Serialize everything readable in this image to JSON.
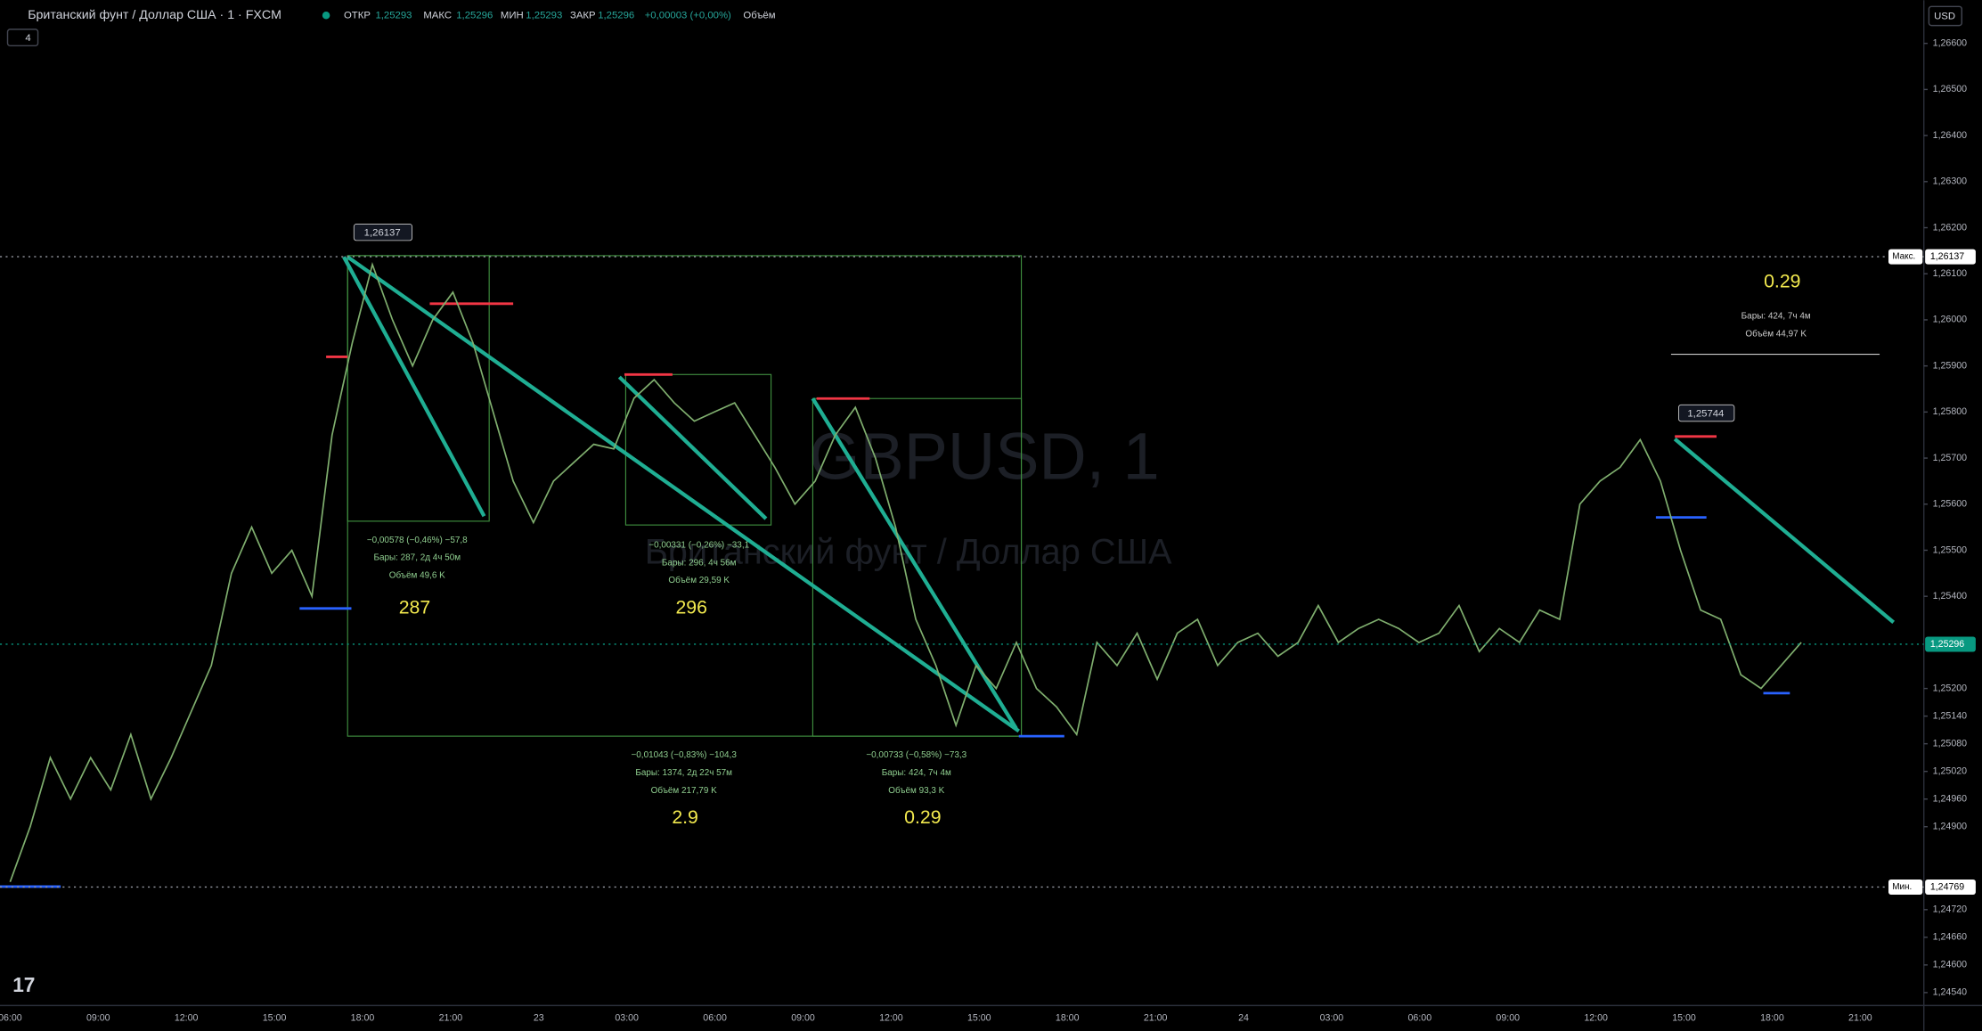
{
  "header": {
    "symbol": "Британский фунт / Доллар США · 1 · FXCM",
    "indicators": "4",
    "ohlc": [
      "ОТКР",
      "1,25293",
      "МАКС",
      "1,25296",
      "МИН",
      "1,25293",
      "ЗАКР",
      "1,25296",
      "+0,00003 (+0,00%)",
      "Объём"
    ],
    "currency": "USD"
  },
  "watermark": {
    "symbol": "GBPUSD, 1",
    "name": "Британский фунт / Доллар США"
  },
  "annotations": {
    "peak1": "1,26137",
    "peak2": "1,25744",
    "m1": [
      "−0,00578 (−0,46%) −57,8",
      "Бары: 287, 2д 4ч 50м",
      "Объём 49,6 K"
    ],
    "m2": [
      "−0,00331 (−0,26%) −33,1",
      "Бары: 296, 4ч 56м",
      "Объём 29,59 K"
    ],
    "m3": [
      "−0,01043 (−0,83%) −104,3",
      "Бары: 1374, 2д 22ч 57м",
      "Объём 217,79 K"
    ],
    "m4": [
      "−0,00733 (−0,58%) −73,3",
      "Бары: 424, 7ч 4м",
      "Объём 93,3 K"
    ],
    "m5": [
      "Бары: 424, 7ч 4м",
      "Объём 44,97 K"
    ],
    "ratios": [
      "287",
      "296",
      "2.9",
      "0.29",
      "0.29"
    ]
  },
  "chart_data": {
    "type": "line",
    "color": "#7fae6e",
    "ylim": [
      1.24512,
      1.26647
    ],
    "yticks": [
      {
        "value": 1.266,
        "label": "1,26600"
      },
      {
        "value": 1.265,
        "label": "1,26500"
      },
      {
        "value": 1.264,
        "label": "1,26400"
      },
      {
        "value": 1.263,
        "label": "1,26300"
      },
      {
        "value": 1.262,
        "label": "1,26200"
      },
      {
        "value": 1.261,
        "label": "1,26100"
      },
      {
        "value": 1.26,
        "label": "1,26000"
      },
      {
        "value": 1.259,
        "label": "1,25900"
      },
      {
        "value": 1.258,
        "label": "1,25800"
      },
      {
        "value": 1.257,
        "label": "1,25700"
      },
      {
        "value": 1.256,
        "label": "1,25600"
      },
      {
        "value": 1.255,
        "label": "1,25500"
      },
      {
        "value": 1.254,
        "label": "1,25400"
      },
      {
        "value": 1.252,
        "label": "1,25200"
      },
      {
        "value": 1.2514,
        "label": "1,25140"
      },
      {
        "value": 1.2508,
        "label": "1,25080"
      },
      {
        "value": 1.2502,
        "label": "1,25020"
      },
      {
        "value": 1.2496,
        "label": "1,24960"
      },
      {
        "value": 1.249,
        "label": "1,24900"
      },
      {
        "value": 1.2472,
        "label": "1,24720"
      },
      {
        "value": 1.2466,
        "label": "1,24660"
      },
      {
        "value": 1.246,
        "label": "1,24600"
      },
      {
        "value": 1.2454,
        "label": "1,24540"
      }
    ],
    "x_labels": [
      "06:00",
      "09:00",
      "12:00",
      "15:00",
      "18:00",
      "21:00",
      "23",
      "03:00",
      "06:00",
      "09:00",
      "12:00",
      "15:00",
      "18:00",
      "21:00",
      "24",
      "03:00",
      "06:00",
      "09:00",
      "12:00",
      "15:00",
      "18:00",
      "21:00"
    ],
    "price_labels": {
      "max_name": "Макс.",
      "max": {
        "value": 1.26137,
        "label": "1,26137"
      },
      "min_name": "Мин.",
      "min": {
        "value": 1.24769,
        "label": "1,24769"
      },
      "last": {
        "value": 1.25296,
        "label": "1,25296"
      }
    },
    "values": [
      1.2478,
      1.249,
      1.2505,
      1.2496,
      1.2505,
      1.2498,
      1.251,
      1.2496,
      1.2505,
      1.2515,
      1.2525,
      1.2545,
      1.2555,
      1.2545,
      1.255,
      1.254,
      1.2575,
      1.2595,
      1.2612,
      1.26,
      1.259,
      1.26,
      1.2606,
      1.2595,
      1.258,
      1.2565,
      1.2556,
      1.2565,
      1.2569,
      1.2573,
      1.2572,
      1.2583,
      1.2587,
      1.2582,
      1.2578,
      1.258,
      1.2582,
      1.2575,
      1.2568,
      1.256,
      1.2565,
      1.2575,
      1.2581,
      1.257,
      1.2555,
      1.2535,
      1.2525,
      1.2512,
      1.2525,
      1.252,
      1.253,
      1.252,
      1.2516,
      1.251,
      1.253,
      1.2525,
      1.2532,
      1.2522,
      1.2532,
      1.2535,
      1.2525,
      1.253,
      1.2532,
      1.2527,
      1.253,
      1.2538,
      1.253,
      1.2533,
      1.2535,
      1.2533,
      1.253,
      1.2532,
      1.2538,
      1.2528,
      1.2533,
      1.253,
      1.2537,
      1.2535,
      1.256,
      1.2565,
      1.2568,
      1.2574,
      1.2565,
      1.255,
      1.2537,
      1.2535,
      1.2523,
      1.252,
      1.2525,
      1.253
    ]
  }
}
